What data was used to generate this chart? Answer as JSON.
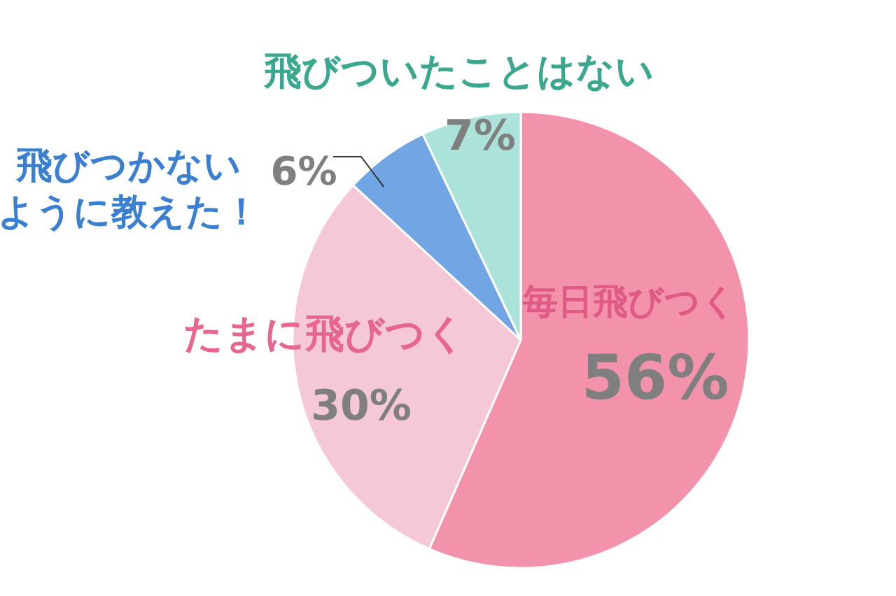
{
  "chart_data": {
    "type": "pie",
    "categories": [
      "毎日飛びつく",
      "たまに飛びつく",
      "飛びつかないように教えた！",
      "飛びついたことはない"
    ],
    "values": [
      56,
      30,
      6,
      7
    ],
    "colors": [
      "#f292ab",
      "#f5c8d8",
      "#72a5e4",
      "#abe3da"
    ],
    "value_labels": [
      "56%",
      "30%",
      "6%",
      "7%"
    ]
  }
}
